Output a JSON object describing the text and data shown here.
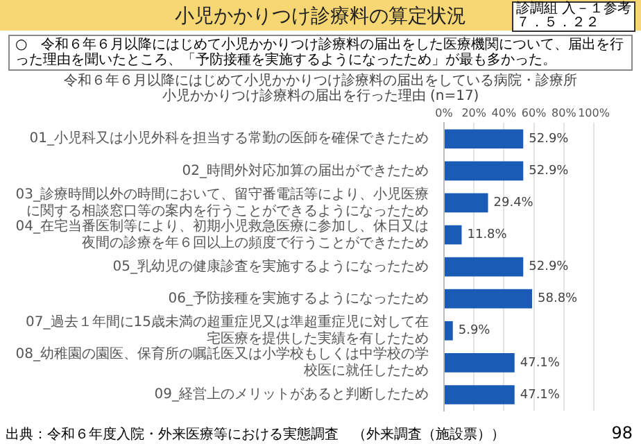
{
  "chart_data": {
    "type": "bar",
    "orientation": "horizontal",
    "title": "令和６年６月以降にはじめて小児かかりつけ診療料の届出をしている病院・診療所",
    "subtitle": "小児かかりつけ診療料の届出を行った理由 (n=17)",
    "categories": [
      "01_小児科又は小児外科を担当する常勤の医師を確保できたため",
      "02_時間外対応加算の届出ができたため",
      "03_診療時間以外の時間において、留守番電話等により、小児医療に関する相談窓口等の案内を行うことができるようになったため",
      "04_在宅当番医制等により、初期小児救急医療に参加し、休日又は夜間の診療を年６回以上の頻度で行うことができたため",
      "05_乳幼児の健康診査を実施するようになったため",
      "06_予防接種を実施するようになったため",
      "07_過去１年間に15歳未満の超重症児又は準超重症児に対して在宅医療を提供した実績を有したため",
      "08_幼稚園の園医、保育所の嘱託医又は小学校もしくは中学校の学校医に就任したため",
      "09_経営上のメリットがあると判断したため"
    ],
    "values": [
      52.9,
      52.9,
      29.4,
      11.8,
      52.9,
      58.8,
      5.9,
      47.1,
      47.1
    ],
    "value_labels": [
      "52.9%",
      "52.9%",
      "29.4%",
      "11.8%",
      "52.9%",
      "58.8%",
      "5.9%",
      "47.1%",
      "47.1%"
    ],
    "color": "#1a5bb5",
    "xlim": [
      0,
      100
    ],
    "xticks": [
      {
        "value": 0,
        "label": "0%"
      },
      {
        "value": 20,
        "label": "20%"
      },
      {
        "value": 40,
        "label": "40%"
      },
      {
        "value": 60,
        "label": "60%"
      },
      {
        "value": 80,
        "label": "80%"
      },
      {
        "value": 100,
        "label": "100%"
      }
    ],
    "grid": "x",
    "annotations": [
      "小児かかりつけ診療料の算定状況",
      "診調組 入－１参考",
      "７．５．２２",
      "○　令和６年６月以降にはじめて小児かかりつけ診療料の届出をした医療機関について、届出を行った理由を聞いたところ、「予防接種を実施するようになったため」が最も多かった。",
      "出典：令和６年度入院・外来医療等における実態調査　（外来調査（施設票））",
      "98"
    ]
  }
}
